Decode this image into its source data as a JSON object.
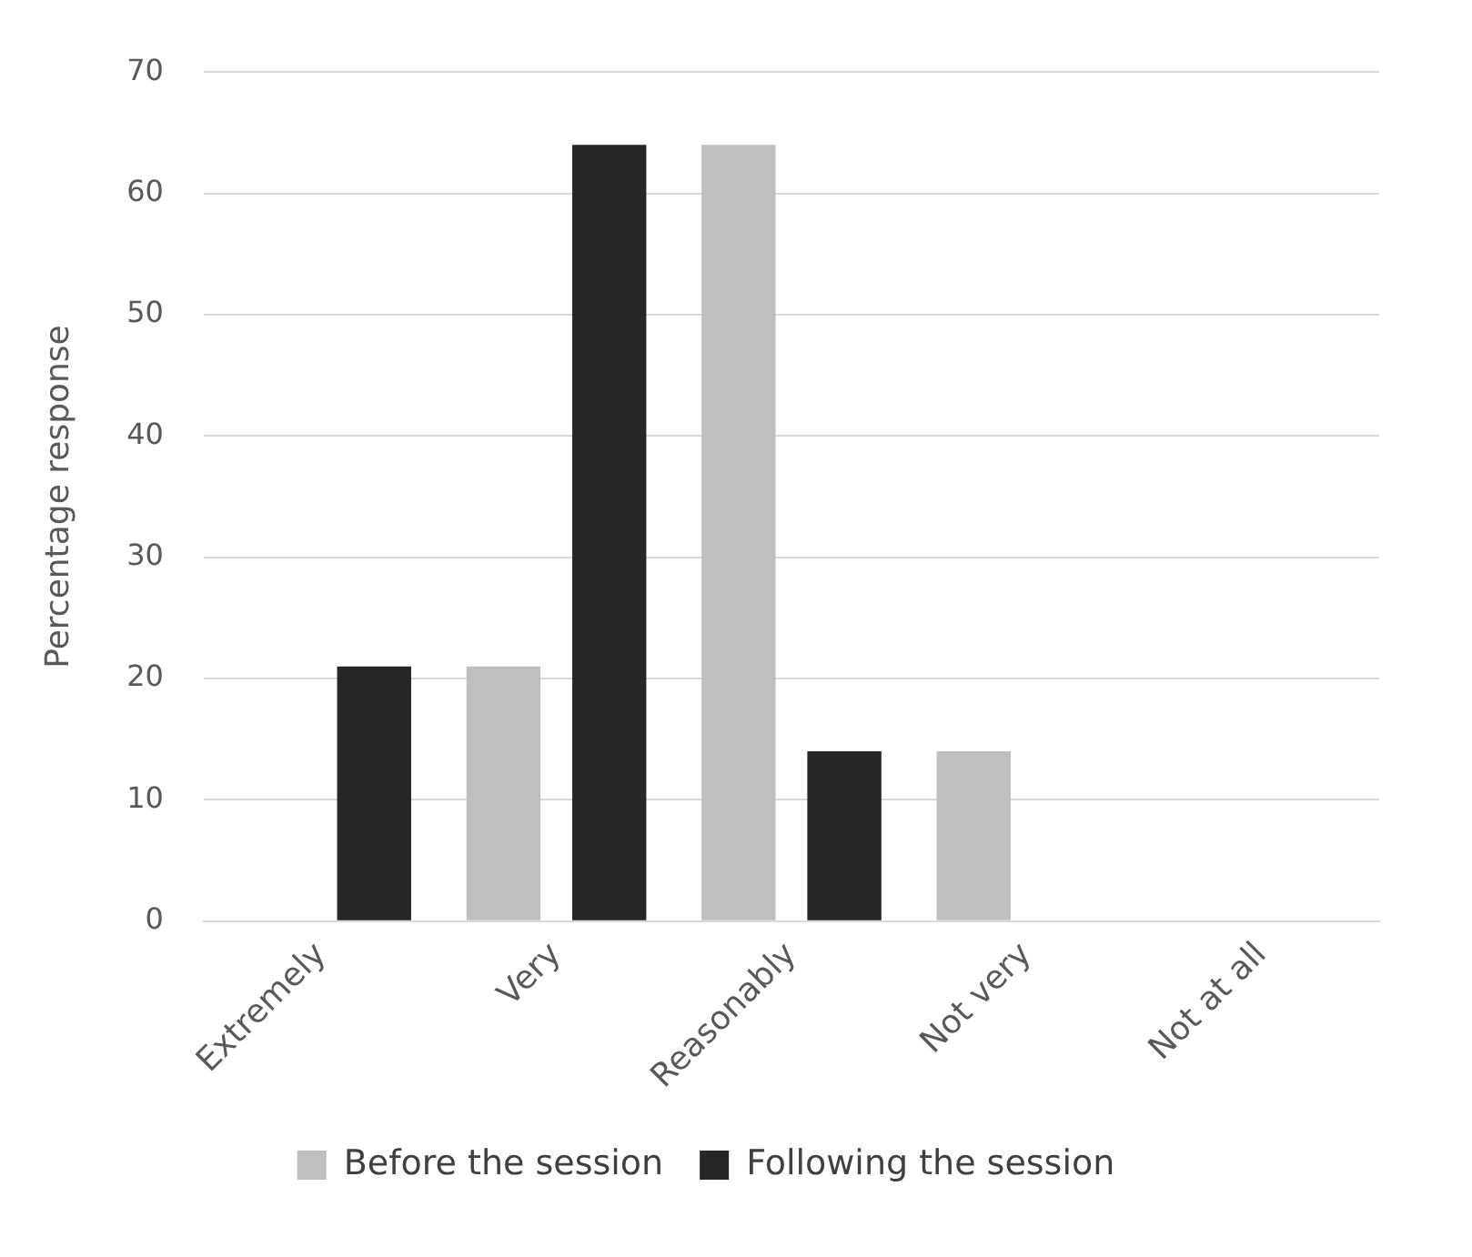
{
  "chart_data": {
    "type": "bar",
    "ylabel": "Percentage response",
    "categories": [
      "Extremely",
      "Very",
      "Reasonably",
      "Not very",
      "Not at all"
    ],
    "series": [
      {
        "name": "Before the session",
        "color": "#bfbfbf",
        "values": [
          0,
          21,
          64,
          14,
          0
        ]
      },
      {
        "name": "Following the session",
        "color": "#262626",
        "values": [
          21,
          64,
          14,
          0,
          0
        ]
      }
    ],
    "ylim": [
      0,
      70
    ],
    "yticks": [
      0,
      10,
      20,
      30,
      40,
      50,
      60,
      70
    ],
    "grid": "y",
    "legend": "bottom"
  }
}
